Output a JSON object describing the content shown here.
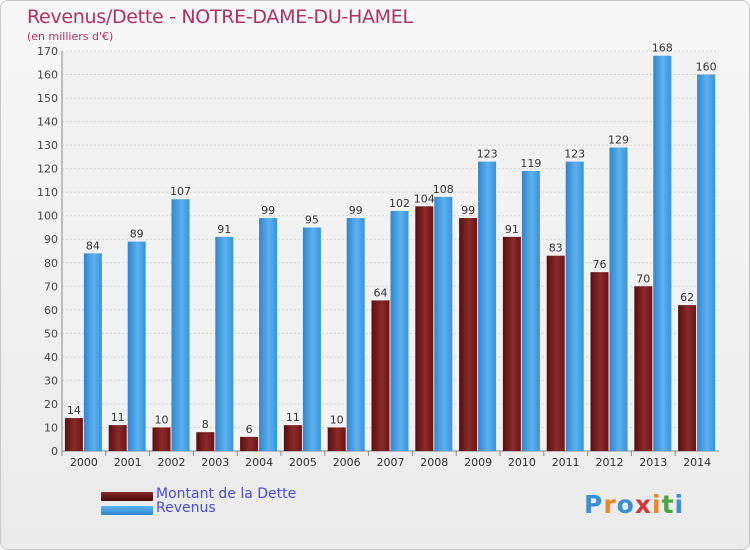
{
  "chart_data": {
    "type": "bar",
    "title": "Revenus/Dette - NOTRE-DAME-DU-HAMEL",
    "subtitle": "(en milliers d'€)",
    "categories": [
      "2000",
      "2001",
      "2002",
      "2003",
      "2004",
      "2005",
      "2006",
      "2007",
      "2008",
      "2009",
      "2010",
      "2011",
      "2012",
      "2013",
      "2014"
    ],
    "series": [
      {
        "name": "Montant de la Dette",
        "color": "#7a1a1a",
        "values": [
          14,
          11,
          10,
          8,
          6,
          11,
          10,
          64,
          104,
          99,
          91,
          83,
          76,
          70,
          62
        ]
      },
      {
        "name": "Revenus",
        "color": "#4da6e8",
        "values": [
          84,
          89,
          107,
          91,
          99,
          95,
          99,
          102,
          108,
          123,
          119,
          123,
          129,
          168,
          160
        ]
      }
    ],
    "ylim": [
      0,
      170
    ],
    "yticks": [
      0,
      10,
      20,
      30,
      40,
      50,
      60,
      70,
      80,
      90,
      100,
      110,
      120,
      130,
      140,
      150,
      160,
      170
    ],
    "grid": true,
    "legend_position": "bottom-left"
  },
  "logo": {
    "letters": [
      "P",
      "r",
      "o",
      "x",
      "i",
      "t",
      "i"
    ],
    "colors": [
      "#3a8fd6",
      "#e8862a",
      "#3a8fd6",
      "#d23a3a",
      "#e8862a",
      "#4aa844",
      "#3a8fd6"
    ]
  }
}
